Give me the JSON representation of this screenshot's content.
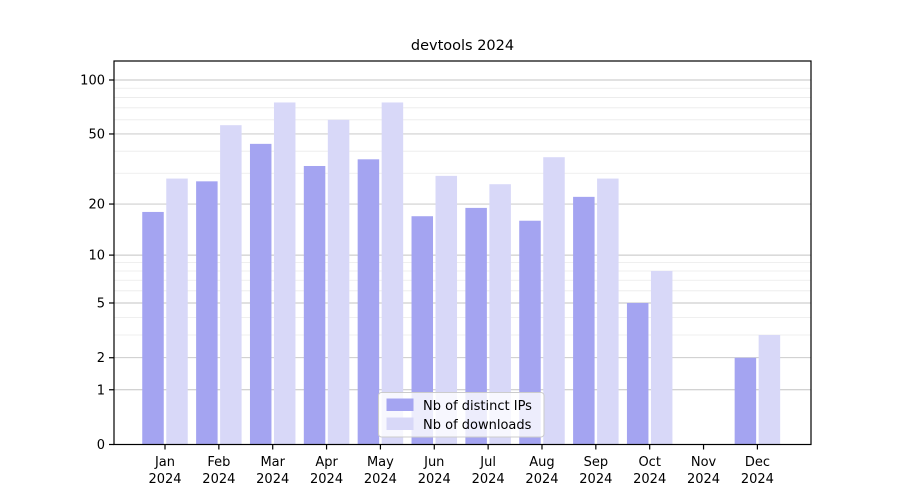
{
  "chart_data": {
    "type": "bar",
    "title": "devtools 2024",
    "months": [
      "Jan",
      "Feb",
      "Mar",
      "Apr",
      "May",
      "Jun",
      "Jul",
      "Aug",
      "Sep",
      "Oct",
      "Nov",
      "Dec"
    ],
    "year_label": "2024",
    "series": [
      {
        "name": "Nb of distinct IPs",
        "color": "#a4a4f1",
        "values": [
          18,
          27,
          44,
          33,
          36,
          17,
          19,
          16,
          22,
          5,
          0,
          2
        ]
      },
      {
        "name": "Nb of downloads",
        "color": "#d8d8f8",
        "values": [
          28,
          56,
          75,
          60,
          75,
          29,
          26,
          37,
          28,
          8,
          0,
          3
        ]
      }
    ],
    "yscale": "log1p",
    "ylim": [
      0,
      128
    ],
    "yticks": [
      100,
      50,
      20,
      10,
      5,
      2,
      1,
      0
    ],
    "ytick_labels": [
      "100",
      "50",
      "20",
      "10",
      "5",
      "2",
      "1",
      "0"
    ],
    "minor_yticks": [
      3,
      4,
      6,
      7,
      8,
      9,
      30,
      40,
      60,
      70,
      80,
      90
    ],
    "grid": true,
    "legend_position": "bottom-center-inside",
    "colors": {
      "major_grid": "#c3c3c3",
      "minor_grid": "#eaeaea",
      "spine": "#000000",
      "legend_border": "#cccccc",
      "legend_bg": "rgba(255,255,255,0.8)"
    }
  }
}
